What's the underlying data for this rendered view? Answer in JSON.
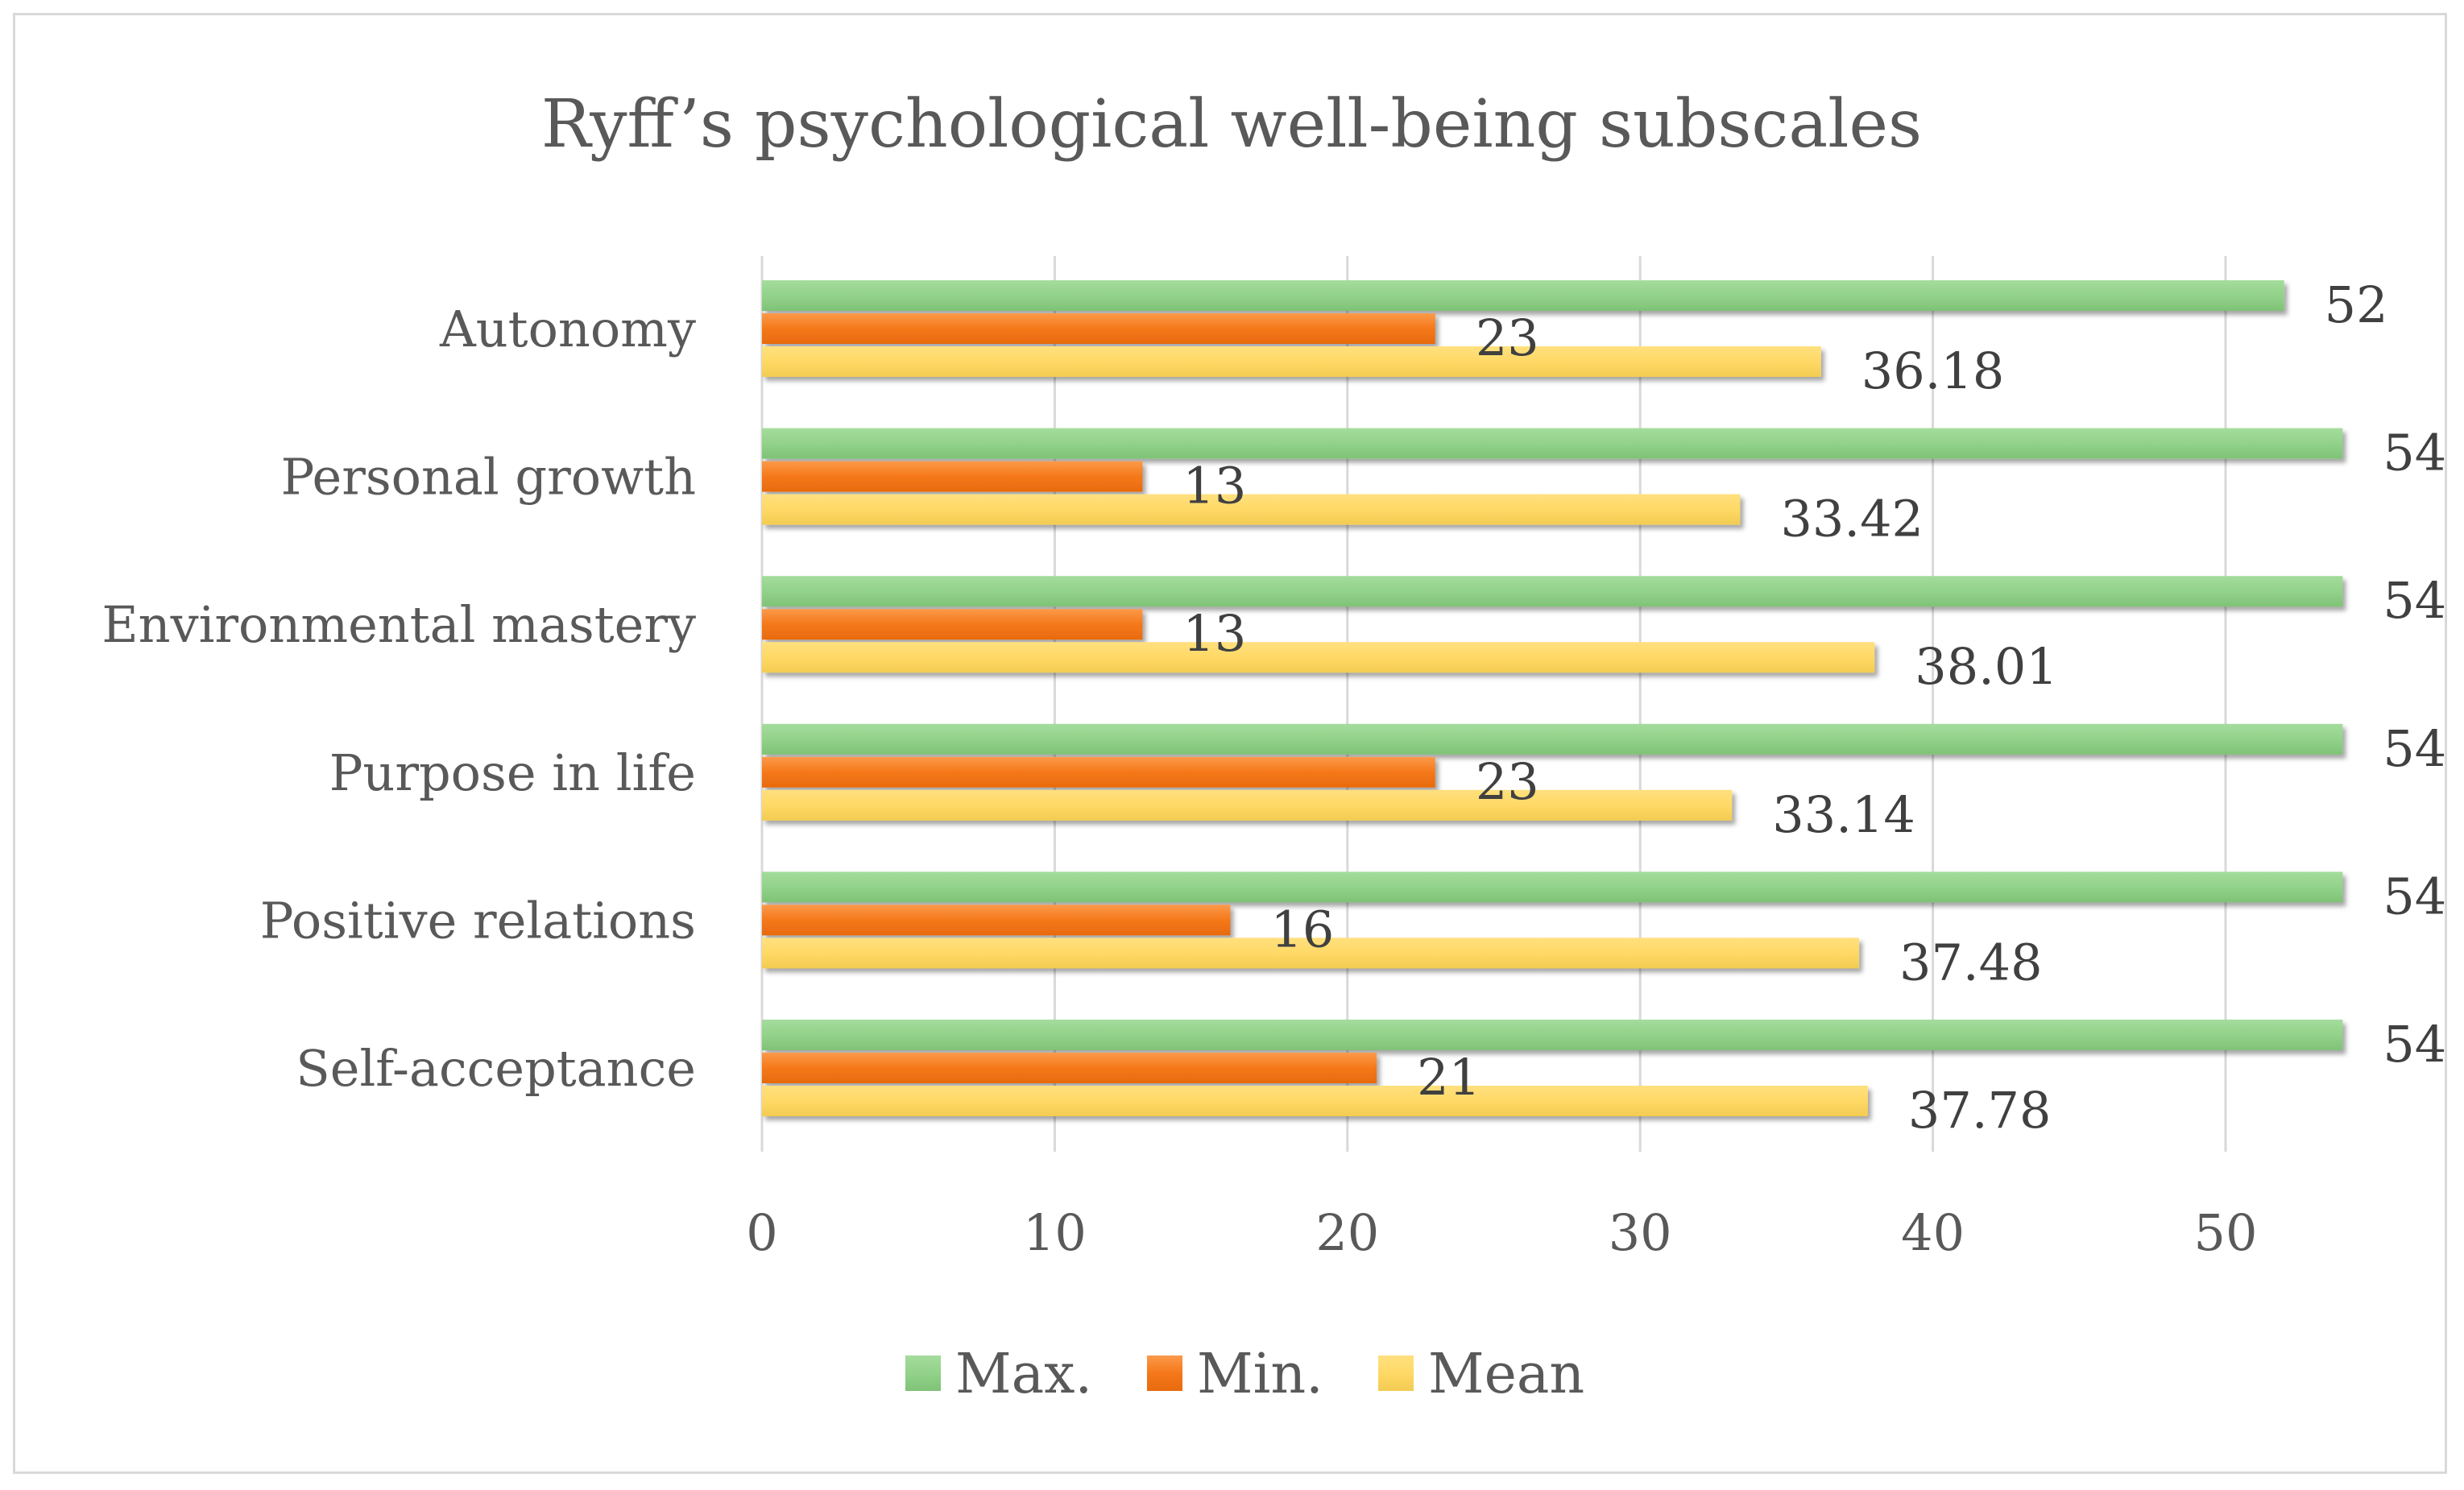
{
  "chart_data": {
    "type": "bar",
    "orientation": "horizontal",
    "title": "Ryff’s psychological well-being subscales",
    "categories": [
      "Autonomy",
      "Personal growth",
      "Environmental mastery",
      "Purpose in life",
      "Positive relations",
      "Self-acceptance"
    ],
    "series": [
      {
        "name": "Max.",
        "color": "#92d28a",
        "values": [
          52,
          54,
          54,
          54,
          54,
          54
        ]
      },
      {
        "name": "Min.",
        "color": "#f57c1f",
        "values": [
          23,
          13,
          13,
          23,
          16,
          21
        ]
      },
      {
        "name": "Mean",
        "color": "#ffd966",
        "values": [
          36.18,
          33.42,
          38.01,
          33.14,
          37.48,
          37.78
        ]
      }
    ],
    "xlim": [
      0,
      55
    ],
    "xticks": [
      0,
      10,
      20,
      30,
      40,
      50
    ],
    "xlabel": "",
    "ylabel": "",
    "grid": true,
    "legend_position": "bottom"
  }
}
